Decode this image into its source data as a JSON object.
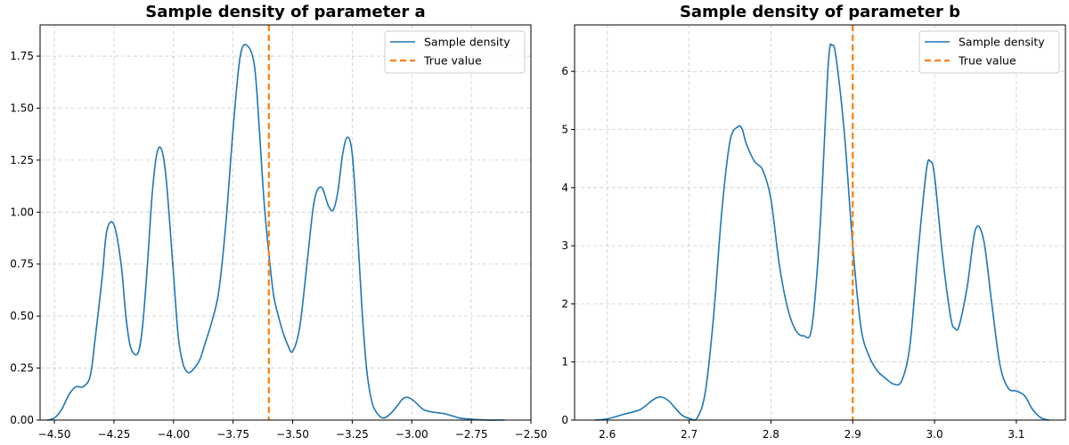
{
  "chart_data": [
    {
      "type": "line",
      "title": "Sample density of parameter a",
      "xlabel": "",
      "ylabel": "",
      "xlim": [
        -4.56,
        -2.5
      ],
      "ylim": [
        0,
        1.9
      ],
      "xticks": [
        -4.5,
        -4.25,
        -4.0,
        -3.75,
        -3.5,
        -3.25,
        -3.0,
        -2.75,
        -2.5
      ],
      "xtick_labels": [
        "−4.50",
        "−4.25",
        "−4.00",
        "−3.75",
        "−3.50",
        "−3.25",
        "−3.00",
        "−2.75",
        "−2.50"
      ],
      "yticks": [
        0,
        0.25,
        0.5,
        0.75,
        1.0,
        1.25,
        1.5,
        1.75
      ],
      "ytick_labels": [
        "0.00",
        "0.25",
        "0.50",
        "0.75",
        "1.00",
        "1.25",
        "1.50",
        "1.75"
      ],
      "grid": true,
      "legend_position": "top-right",
      "series": [
        {
          "name": "Sample density",
          "color": "#1f77b4",
          "x": [
            -4.53,
            -4.5,
            -4.47,
            -4.44,
            -4.41,
            -4.38,
            -4.35,
            -4.33,
            -4.3,
            -4.28,
            -4.25,
            -4.22,
            -4.2,
            -4.18,
            -4.15,
            -4.13,
            -4.11,
            -4.09,
            -4.07,
            -4.05,
            -4.03,
            -4.0,
            -3.98,
            -3.96,
            -3.94,
            -3.92,
            -3.89,
            -3.87,
            -3.84,
            -3.81,
            -3.78,
            -3.75,
            -3.72,
            -3.69,
            -3.66,
            -3.64,
            -3.62,
            -3.6,
            -3.58,
            -3.56,
            -3.54,
            -3.52,
            -3.5,
            -3.47,
            -3.44,
            -3.41,
            -3.38,
            -3.35,
            -3.33,
            -3.31,
            -3.29,
            -3.27,
            -3.25,
            -3.23,
            -3.21,
            -3.19,
            -3.17,
            -3.15,
            -3.12,
            -3.09,
            -3.06,
            -3.04,
            -3.02,
            -3.0,
            -2.98,
            -2.95,
            -2.92,
            -2.89,
            -2.86,
            -2.83,
            -2.8,
            -2.76,
            -2.72,
            -2.68,
            -2.64,
            -2.61
          ],
          "y": [
            0.0,
            0.01,
            0.05,
            0.12,
            0.16,
            0.16,
            0.21,
            0.38,
            0.68,
            0.91,
            0.94,
            0.75,
            0.5,
            0.35,
            0.32,
            0.45,
            0.74,
            1.08,
            1.28,
            1.3,
            1.15,
            0.7,
            0.4,
            0.27,
            0.23,
            0.24,
            0.29,
            0.36,
            0.47,
            0.62,
            0.95,
            1.4,
            1.75,
            1.8,
            1.7,
            1.4,
            1.05,
            0.8,
            0.6,
            0.5,
            0.42,
            0.36,
            0.33,
            0.45,
            0.75,
            1.05,
            1.12,
            1.03,
            1.01,
            1.1,
            1.28,
            1.36,
            1.28,
            0.95,
            0.55,
            0.25,
            0.1,
            0.04,
            0.01,
            0.03,
            0.07,
            0.1,
            0.11,
            0.1,
            0.08,
            0.05,
            0.04,
            0.035,
            0.03,
            0.02,
            0.01,
            0.005,
            0.002,
            0.0,
            0.0,
            0.0
          ]
        },
        {
          "name": "True value",
          "color": "#ff7f0e",
          "dashed": true,
          "vline": -3.6
        }
      ]
    },
    {
      "type": "line",
      "title": "Sample density of parameter b",
      "xlabel": "",
      "ylabel": "",
      "xlim": [
        2.56,
        3.16
      ],
      "ylim": [
        0,
        6.8
      ],
      "xticks": [
        2.6,
        2.7,
        2.8,
        2.9,
        3.0,
        3.1
      ],
      "xtick_labels": [
        "2.6",
        "2.7",
        "2.8",
        "2.9",
        "3.0",
        "3.1"
      ],
      "yticks": [
        0,
        1,
        2,
        3,
        4,
        5,
        6
      ],
      "ytick_labels": [
        "0",
        "1",
        "2",
        "3",
        "4",
        "5",
        "6"
      ],
      "grid": true,
      "legend_position": "top-right",
      "series": [
        {
          "name": "Sample density",
          "color": "#1f77b4",
          "x": [
            2.585,
            2.6,
            2.62,
            2.64,
            2.655,
            2.665,
            2.675,
            2.69,
            2.7,
            2.71,
            2.72,
            2.73,
            2.74,
            2.75,
            2.76,
            2.765,
            2.77,
            2.78,
            2.79,
            2.8,
            2.81,
            2.82,
            2.83,
            2.84,
            2.85,
            2.86,
            2.87,
            2.875,
            2.88,
            2.89,
            2.9,
            2.91,
            2.92,
            2.93,
            2.94,
            2.95,
            2.96,
            2.97,
            2.98,
            2.99,
            2.995,
            3.0,
            3.01,
            3.02,
            3.025,
            3.03,
            3.04,
            3.05,
            3.06,
            3.07,
            3.08,
            3.09,
            3.1,
            3.11,
            3.12,
            3.13,
            3.14
          ],
          "y": [
            0.0,
            0.02,
            0.1,
            0.18,
            0.34,
            0.4,
            0.33,
            0.1,
            0.03,
            0.04,
            0.5,
            1.8,
            3.6,
            4.8,
            5.05,
            5.0,
            4.75,
            4.45,
            4.3,
            3.8,
            2.7,
            1.95,
            1.55,
            1.45,
            1.6,
            3.3,
            6.1,
            6.45,
            6.2,
            4.9,
            3.0,
            1.6,
            1.1,
            0.85,
            0.72,
            0.62,
            0.68,
            1.3,
            2.9,
            4.3,
            4.45,
            4.2,
            2.8,
            1.75,
            1.58,
            1.62,
            2.3,
            3.28,
            3.1,
            2.0,
            0.95,
            0.55,
            0.5,
            0.42,
            0.18,
            0.04,
            0.0
          ]
        },
        {
          "name": "True value",
          "color": "#ff7f0e",
          "dashed": true,
          "vline": 2.9
        }
      ]
    }
  ]
}
